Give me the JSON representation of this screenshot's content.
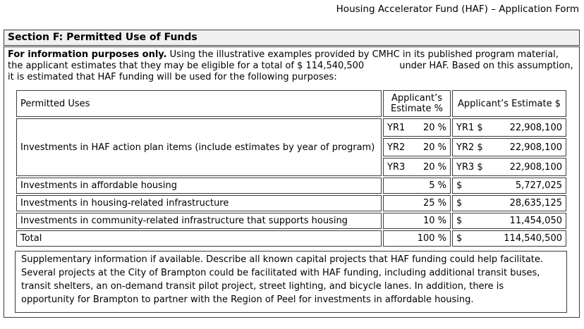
{
  "header": {
    "title": "Housing Accelerator Fund (HAF) – Application Form"
  },
  "section": {
    "title": "Section F: Permitted Use of Funds",
    "intro": {
      "lead": "For information purposes only.",
      "body_before_amount": " Using the illustrative examples provided by CMHC in its published program material, the applicant estimates that they may be eligible for a total of ",
      "amount": "$ 114,540,500",
      "body_after_amount": "under HAF. Based on this assumption, it is estimated that HAF funding will be used for the following purposes:"
    },
    "table": {
      "headers": {
        "uses": "Permitted Uses",
        "pct": "Applicant’s Estimate %",
        "dollar": "Applicant’s Estimate $"
      },
      "action_plan": {
        "label": "Investments in HAF action plan items (include estimates by year of program)",
        "years": [
          {
            "year_label": "YR1",
            "pct": "20 %",
            "dollar_label": "YR1 $",
            "amount": "22,908,100"
          },
          {
            "year_label": "YR2",
            "pct": "20 %",
            "dollar_label": "YR2 $",
            "amount": "22,908,100"
          },
          {
            "year_label": "YR3",
            "pct": "20 %",
            "dollar_label": "YR3 $",
            "amount": "22,908,100"
          }
        ]
      },
      "rows": [
        {
          "label": "Investments in affordable housing",
          "pct": "5 %",
          "dollar_sign": "$",
          "amount": "5,727,025"
        },
        {
          "label": "Investments in housing-related infrastructure",
          "pct": "25 %",
          "dollar_sign": "$",
          "amount": "28,635,125"
        },
        {
          "label": "Investments in community-related infrastructure that supports housing",
          "pct": "10 %",
          "dollar_sign": "$",
          "amount": "11,454,050"
        },
        {
          "label": "Total",
          "pct": "100 %",
          "dollar_sign": "$",
          "amount": "114,540,500"
        }
      ]
    },
    "supplementary": {
      "prompt": "Supplementary information if available. Describe all known capital projects that HAF funding could help facilitate.",
      "response": " Several projects at the City of Brampton could be facilitated with HAF funding, including additional transit buses, transit shelters, an on-demand transit pilot project, street lighting, and bicycle lanes. In addition, there is opportunity for Brampton to partner with the Region of Peel for investments in affordable housing."
    }
  }
}
